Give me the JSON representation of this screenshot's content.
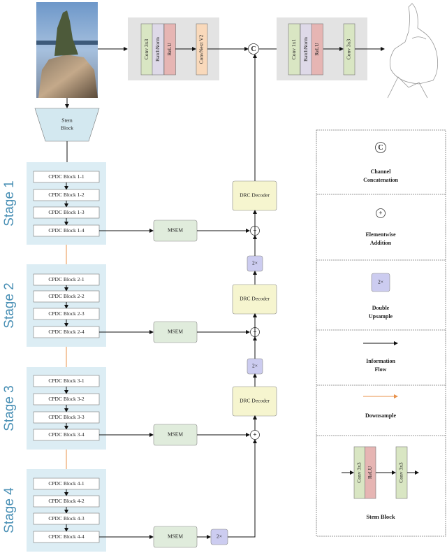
{
  "stem": {
    "label_line1": "Stem",
    "label_line2": "Block"
  },
  "encoder_head": {
    "layers": [
      "Conv 3x3",
      "BatchNorm",
      "ReLU"
    ],
    "extra": "ConvNext V2"
  },
  "output_head": {
    "layers": [
      "Conv 1x1",
      "BatchNorm",
      "ReLU"
    ],
    "extra": "Conv 3x3"
  },
  "concat_symbol": "C",
  "plus_symbol": "+",
  "upsample_label": "2×",
  "msem_label": "MSEM",
  "decoder_label": "DRC Decoder",
  "stages": [
    {
      "label": "Stage 1",
      "blocks": [
        "CPDC Block 1-1",
        "CPDC Block 1-2",
        "CPDC Block 1-3",
        "CPDC Block 1-4"
      ]
    },
    {
      "label": "Stage 2",
      "blocks": [
        "CPDC Block 2-1",
        "CPDC Block 2-2",
        "CPDC Block 2-3",
        "CPDC Block 2-4"
      ]
    },
    {
      "label": "Stage 3",
      "blocks": [
        "CPDC Block 3-1",
        "CPDC Block 3-2",
        "CPDC Block 3-3",
        "CPDC Block 3-4"
      ]
    },
    {
      "label": "Stage 4",
      "blocks": [
        "CPDC Block 4-1",
        "CPDC Block 4-2",
        "CPDC Block 4-3",
        "CPDC Block 4-4"
      ]
    }
  ],
  "legend": {
    "concat": [
      "Channel",
      "Concatenation"
    ],
    "add": [
      "Elementwise",
      "Addition"
    ],
    "upsample": [
      "Double",
      "Upsample"
    ],
    "flow": [
      "Information",
      "Flow"
    ],
    "downsample": [
      "Downsample"
    ],
    "stem": {
      "layers": [
        "Conv 3x3",
        "ReLU"
      ],
      "extra": "Conv 3x3",
      "title": "Stem Block"
    }
  },
  "colors": {
    "stage_bg": "#dcedf4",
    "stem_fill": "#d3e8f0",
    "conv": "#d9e6c3",
    "batchnorm": "#ded9e8",
    "relu": "#e6b5b3",
    "convnext": "#f9d9bb",
    "head_bg": "#e3e3e3",
    "msem": "#e0ecdc",
    "decoder": "#f6f5cf",
    "upsample": "#ccccf0",
    "downsample_arrow": "#e8914a",
    "stage_text": "#4a90b5"
  }
}
